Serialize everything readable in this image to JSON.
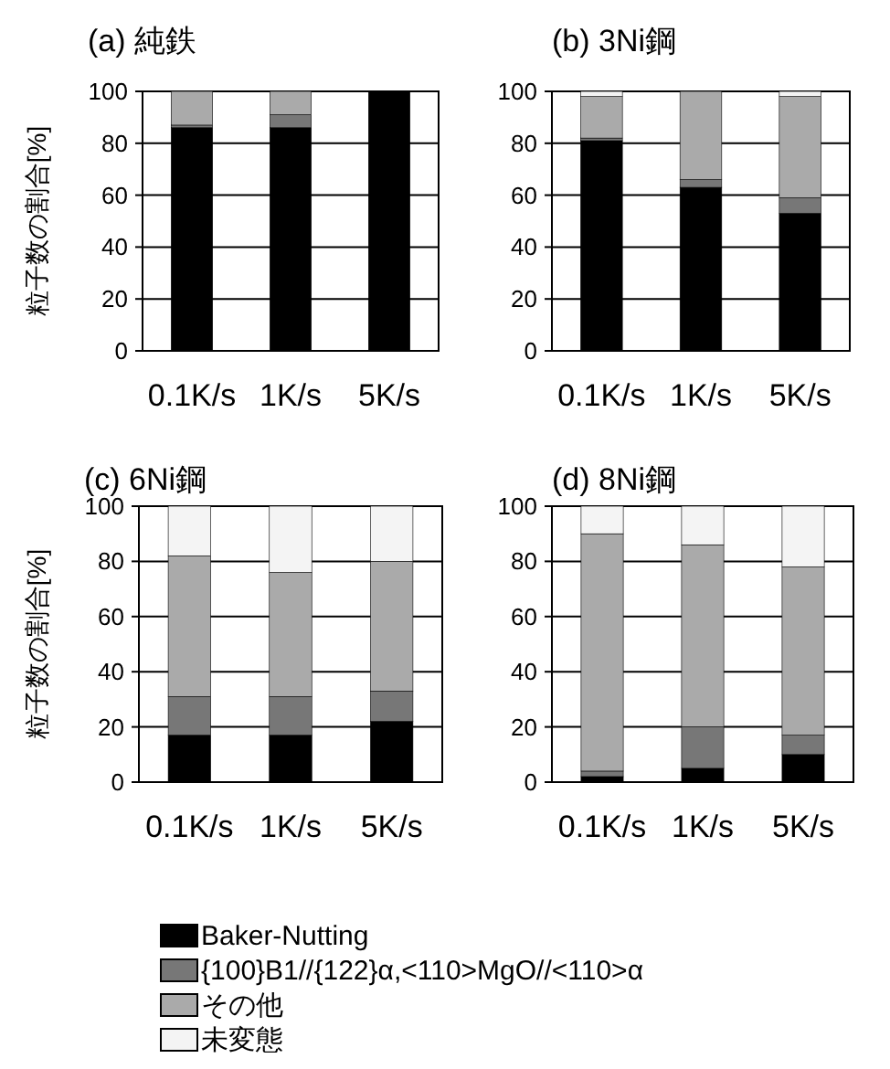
{
  "chart_data": [
    {
      "type": "bar",
      "stacked": true,
      "title": "(a) 純鉄",
      "ylabel": "粒子数の割合[%]",
      "categories": [
        "0.1K/s",
        "1K/s",
        "5K/s"
      ],
      "ylim": [
        0,
        100
      ],
      "yticks": [
        0,
        20,
        40,
        60,
        80,
        100
      ],
      "grid": "y",
      "series": [
        {
          "color": "#000000",
          "values": [
            86,
            86,
            100
          ]
        },
        {
          "color": "#777777",
          "values": [
            1,
            5,
            0
          ]
        },
        {
          "color": "#aaaaaa",
          "values": [
            13,
            9,
            0
          ]
        },
        {
          "color": "#f4f4f4",
          "values": [
            0,
            0,
            0
          ]
        }
      ]
    },
    {
      "type": "bar",
      "stacked": true,
      "title": "(b) 3Ni鋼",
      "categories": [
        "0.1K/s",
        "1K/s",
        "5K/s"
      ],
      "ylim": [
        0,
        100
      ],
      "yticks": [
        0,
        20,
        40,
        60,
        80,
        100
      ],
      "grid": "y",
      "series": [
        {
          "color": "#000000",
          "values": [
            81,
            63,
            53
          ]
        },
        {
          "color": "#777777",
          "values": [
            1,
            3,
            6
          ]
        },
        {
          "color": "#aaaaaa",
          "values": [
            16,
            34,
            39
          ]
        },
        {
          "color": "#f4f4f4",
          "values": [
            2,
            0,
            2
          ]
        }
      ]
    },
    {
      "type": "bar",
      "stacked": true,
      "title": "(c) 6Ni鋼",
      "ylabel": "粒子数の割合[%]",
      "categories": [
        "0.1K/s",
        "1K/s",
        "5K/s"
      ],
      "ylim": [
        0,
        100
      ],
      "yticks": [
        0,
        20,
        40,
        60,
        80,
        100
      ],
      "grid": "y",
      "series": [
        {
          "color": "#000000",
          "values": [
            17,
            17,
            22
          ]
        },
        {
          "color": "#777777",
          "values": [
            14,
            14,
            11
          ]
        },
        {
          "color": "#aaaaaa",
          "values": [
            51,
            45,
            47
          ]
        },
        {
          "color": "#f4f4f4",
          "values": [
            18,
            24,
            20
          ]
        }
      ]
    },
    {
      "type": "bar",
      "stacked": true,
      "title": "(d) 8Ni鋼",
      "categories": [
        "0.1K/s",
        "1K/s",
        "5K/s"
      ],
      "ylim": [
        0,
        100
      ],
      "yticks": [
        0,
        20,
        40,
        60,
        80,
        100
      ],
      "grid": "y",
      "legend": "bottom",
      "series": [
        {
          "name": "Baker-Nutting",
          "color": "#000000",
          "values": [
            2,
            5,
            10
          ]
        },
        {
          "name": "{100}B1//{122}α,<110>MgO//<110>α",
          "color": "#777777",
          "values": [
            2,
            15,
            7
          ]
        },
        {
          "name": "その他",
          "color": "#aaaaaa",
          "values": [
            86,
            66,
            61
          ]
        },
        {
          "name": "未変態",
          "color": "#f4f4f4",
          "values": [
            10,
            14,
            22
          ]
        }
      ]
    }
  ]
}
